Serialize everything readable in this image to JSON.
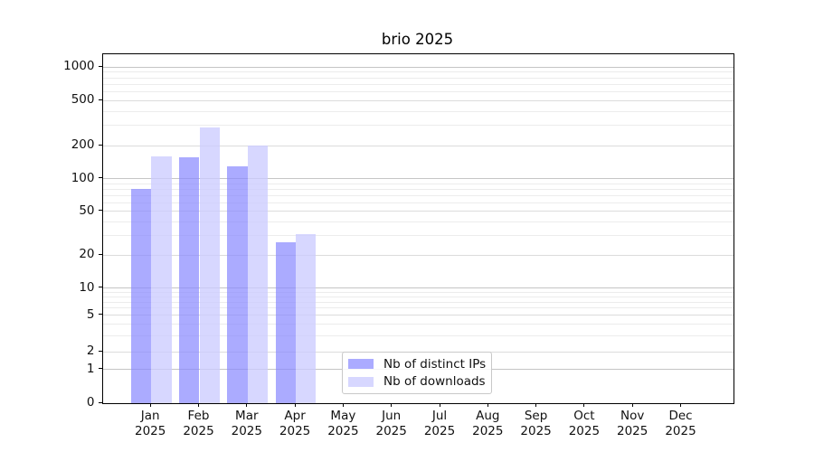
{
  "title": "brio 2025",
  "chart_data": {
    "type": "bar",
    "title": "brio 2025",
    "categories": [
      "Jan 2025",
      "Feb 2025",
      "Mar 2025",
      "Apr 2025",
      "May 2025",
      "Jun 2025",
      "Jul 2025",
      "Aug 2025",
      "Sep 2025",
      "Oct 2025",
      "Nov 2025",
      "Dec 2025"
    ],
    "xtick_labels": [
      [
        "Jan",
        "2025"
      ],
      [
        "Feb",
        "2025"
      ],
      [
        "Mar",
        "2025"
      ],
      [
        "Apr",
        "2025"
      ],
      [
        "May",
        "2025"
      ],
      [
        "Jun",
        "2025"
      ],
      [
        "Jul",
        "2025"
      ],
      [
        "Aug",
        "2025"
      ],
      [
        "Sep",
        "2025"
      ],
      [
        "Oct",
        "2025"
      ],
      [
        "Nov",
        "2025"
      ],
      [
        "Dec",
        "2025"
      ]
    ],
    "series": [
      {
        "name": "Nb of distinct IPs",
        "fill": "rgba(136,136,255,0.70)",
        "values": [
          80,
          155,
          130,
          26,
          0,
          0,
          0,
          0,
          0,
          0,
          0,
          0
        ]
      },
      {
        "name": "Nb of downloads",
        "fill": "rgba(204,204,255,0.78)",
        "values": [
          160,
          290,
          200,
          31,
          0,
          0,
          0,
          0,
          0,
          0,
          0,
          0
        ]
      }
    ],
    "yticks": [
      0,
      1,
      2,
      5,
      10,
      20,
      50,
      100,
      200,
      500,
      1000
    ],
    "ylim": [
      0,
      1200
    ],
    "yscale": "log-style (compressed linear segment below 2, log above)",
    "grid": "horizontal, major and minor",
    "legend_position": "inside axes, lower center-left",
    "xlabel": "",
    "ylabel": ""
  }
}
